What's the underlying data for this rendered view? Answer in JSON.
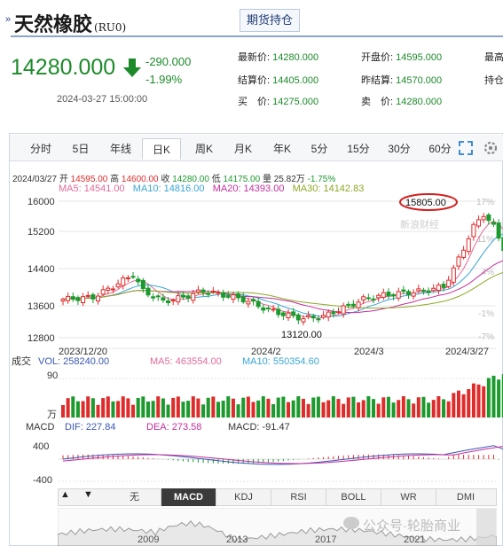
{
  "header": {
    "title": "天然橡胶",
    "code": "(RU0)",
    "tab_label": "期货持仓"
  },
  "quote": {
    "price": "14280.000",
    "change": "-290.000",
    "change_pct": "-1.99%",
    "timestamp": "2024-03-27 15:00:00",
    "fields": [
      {
        "label": "最新价:",
        "value": "14280.000"
      },
      {
        "label": "开盘价:",
        "value": "14595.000"
      },
      {
        "label": "最高",
        "value": ""
      },
      {
        "label": "结算价:",
        "value": "14405.000"
      },
      {
        "label": "昨结算:",
        "value": "14570.000"
      },
      {
        "label": "持仓",
        "value": ""
      },
      {
        "label": "买　价:",
        "value": "14275.000"
      },
      {
        "label": "卖　价:",
        "value": "14280.000"
      }
    ]
  },
  "tabs": [
    "分时",
    "5日",
    "年线",
    "日K",
    "周K",
    "月K",
    "年K",
    "5分",
    "15分",
    "30分",
    "60分"
  ],
  "active_tab": "日K",
  "info_bar": {
    "date": "2024/03/27",
    "open_label": "开",
    "open": "14595.00",
    "high_label": "高",
    "high": "14600.00",
    "close_label": "收",
    "close": "14280.00",
    "low_label": "低",
    "low": "14175.00",
    "vol_label": "量",
    "vol": "25.82万",
    "pct": "-1.75%"
  },
  "ma": {
    "ma5": "MA5: 14541.00",
    "ma10": "MA10: 14816.00",
    "ma20": "MA20: 14393.00",
    "ma30": "MA30: 14142.83"
  },
  "price_axis": [
    "16000",
    "15200",
    "14400",
    "13600",
    "12800"
  ],
  "pct_axis": [
    "17%",
    "11%",
    "4%",
    "-1%",
    "-7%"
  ],
  "annotations": {
    "high": "15805.00",
    "low": "13120.00"
  },
  "date_axis": [
    "2023/12/20",
    "2024/2",
    "2024/3",
    "2024/3/27"
  ],
  "watermark": "新浪财经",
  "volume_panel": {
    "label": "成交",
    "vol": "VOL: 258240.00",
    "ma5": "MA5: 463554.00",
    "ma10": "MA10: 550354.60",
    "axis_top": "90",
    "unit": "万"
  },
  "macd_panel": {
    "label": "MACD",
    "dif": "DIF: 227.84",
    "dea": "DEA: 273.58",
    "macd": "MACD: -91.47",
    "axis_top": "400",
    "axis_bottom": "-400"
  },
  "indicators": [
    "无",
    "MACD",
    "KDJ",
    "RSI",
    "BOLL",
    "WR",
    "DMI"
  ],
  "active_indicator": "MACD",
  "overview_years": [
    "2009",
    "2013",
    "2017",
    "2021"
  ],
  "overview_caption": "公众号·轮胎商业",
  "colors": {
    "up": "#e02b2b",
    "down": "#1c9a2e",
    "ma5": "#e36a9a",
    "ma10": "#3aa6d6",
    "ma20": "#c42f9c",
    "ma30": "#8ca826"
  }
}
